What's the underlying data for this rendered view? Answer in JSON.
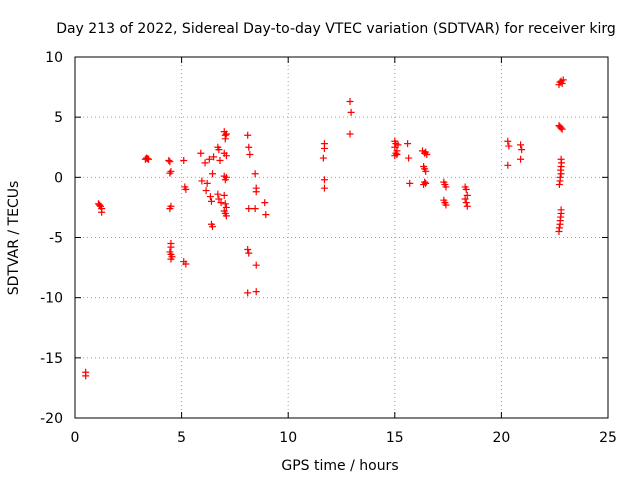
{
  "chart_data": {
    "type": "scatter",
    "title": "Day 213 of 2022, Sidereal Day-to-day VTEC variation (SDTVAR) for receiver kirg",
    "xlabel": "GPS time / hours",
    "ylabel": "SDTVAR / TECUs",
    "xlim": [
      0,
      25
    ],
    "ylim": [
      -20,
      10
    ],
    "xticks": [
      0,
      5,
      10,
      15,
      20,
      25
    ],
    "yticks": [
      -20,
      -15,
      -10,
      -5,
      0,
      5,
      10
    ],
    "grid": true,
    "marker": "+",
    "color": "#ff0000",
    "series": [
      {
        "name": "SDTVAR",
        "points": [
          [
            0.5,
            -16.2
          ],
          [
            0.5,
            -16.5
          ],
          [
            1.1,
            -2.2
          ],
          [
            1.15,
            -2.3
          ],
          [
            1.2,
            -2.4
          ],
          [
            1.25,
            -2.6
          ],
          [
            1.25,
            -2.9
          ],
          [
            3.3,
            1.5
          ],
          [
            3.35,
            1.6
          ],
          [
            3.4,
            1.55
          ],
          [
            3.45,
            1.5
          ],
          [
            4.4,
            1.4
          ],
          [
            4.45,
            1.3
          ],
          [
            4.5,
            0.5
          ],
          [
            4.45,
            0.35
          ],
          [
            4.5,
            -2.4
          ],
          [
            4.45,
            -2.6
          ],
          [
            4.5,
            -5.5
          ],
          [
            4.5,
            -5.8
          ],
          [
            4.45,
            -6.2
          ],
          [
            4.5,
            -6.4
          ],
          [
            4.55,
            -6.6
          ],
          [
            4.5,
            -6.8
          ],
          [
            5.1,
            1.4
          ],
          [
            5.15,
            -0.8
          ],
          [
            5.2,
            -1.0
          ],
          [
            5.1,
            -7.0
          ],
          [
            5.2,
            -7.2
          ],
          [
            5.9,
            2.0
          ],
          [
            5.95,
            -0.3
          ],
          [
            6.1,
            1.2
          ],
          [
            6.15,
            -1.1
          ],
          [
            6.3,
            1.5
          ],
          [
            6.2,
            -0.5
          ],
          [
            6.35,
            -1.6
          ],
          [
            6.4,
            -2.0
          ],
          [
            6.45,
            0.3
          ],
          [
            6.5,
            1.7
          ],
          [
            6.4,
            -3.9
          ],
          [
            6.45,
            -4.1
          ],
          [
            6.7,
            2.5
          ],
          [
            6.75,
            2.3
          ],
          [
            6.7,
            -1.4
          ],
          [
            6.75,
            -1.8
          ],
          [
            6.8,
            1.4
          ],
          [
            6.85,
            -2.1
          ],
          [
            7.0,
            3.8
          ],
          [
            7.05,
            3.5
          ],
          [
            7.1,
            3.6
          ],
          [
            7.05,
            3.2
          ],
          [
            7.0,
            2.0
          ],
          [
            7.1,
            1.8
          ],
          [
            7.0,
            0.1
          ],
          [
            7.05,
            -0.2
          ],
          [
            7.1,
            0.0
          ],
          [
            7.0,
            -1.5
          ],
          [
            7.05,
            -2.2
          ],
          [
            7.1,
            -2.5
          ],
          [
            7.0,
            -2.8
          ],
          [
            7.05,
            -3.0
          ],
          [
            7.1,
            -3.2
          ],
          [
            8.1,
            3.5
          ],
          [
            8.15,
            2.5
          ],
          [
            8.2,
            1.9
          ],
          [
            8.15,
            -2.6
          ],
          [
            8.1,
            -6.0
          ],
          [
            8.15,
            -6.3
          ],
          [
            8.1,
            -9.6
          ],
          [
            8.45,
            0.3
          ],
          [
            8.5,
            -0.9
          ],
          [
            8.5,
            -1.2
          ],
          [
            8.45,
            -2.6
          ],
          [
            8.5,
            -7.3
          ],
          [
            8.5,
            -9.5
          ],
          [
            8.9,
            -2.1
          ],
          [
            8.95,
            -3.1
          ],
          [
            11.7,
            2.8
          ],
          [
            11.7,
            2.4
          ],
          [
            11.65,
            1.6
          ],
          [
            11.7,
            -0.2
          ],
          [
            11.7,
            -0.9
          ],
          [
            12.9,
            6.3
          ],
          [
            12.95,
            5.4
          ],
          [
            12.9,
            3.6
          ],
          [
            15.0,
            3.0
          ],
          [
            15.05,
            2.8
          ],
          [
            15.0,
            2.5
          ],
          [
            15.1,
            2.2
          ],
          [
            15.05,
            2.0
          ],
          [
            15.0,
            1.8
          ],
          [
            15.1,
            1.9
          ],
          [
            15.15,
            2.7
          ],
          [
            15.6,
            2.8
          ],
          [
            15.65,
            1.6
          ],
          [
            15.7,
            -0.5
          ],
          [
            16.3,
            2.2
          ],
          [
            16.4,
            2.0
          ],
          [
            16.45,
            2.1
          ],
          [
            16.5,
            1.9
          ],
          [
            16.35,
            0.9
          ],
          [
            16.4,
            0.7
          ],
          [
            16.45,
            0.5
          ],
          [
            16.4,
            -0.4
          ],
          [
            16.45,
            -0.5
          ],
          [
            16.35,
            -0.6
          ],
          [
            17.3,
            -0.4
          ],
          [
            17.35,
            -0.6
          ],
          [
            17.4,
            -0.8
          ],
          [
            17.3,
            -1.9
          ],
          [
            17.35,
            -2.1
          ],
          [
            17.4,
            -2.3
          ],
          [
            18.3,
            -0.8
          ],
          [
            18.35,
            -1.0
          ],
          [
            18.4,
            -1.5
          ],
          [
            18.3,
            -1.8
          ],
          [
            18.35,
            -2.1
          ],
          [
            18.4,
            -2.4
          ],
          [
            20.3,
            3.0
          ],
          [
            20.35,
            2.6
          ],
          [
            20.3,
            1.0
          ],
          [
            20.9,
            2.7
          ],
          [
            20.95,
            2.3
          ],
          [
            20.9,
            1.5
          ],
          [
            22.7,
            7.7
          ],
          [
            22.75,
            7.9
          ],
          [
            22.8,
            8.0
          ],
          [
            22.85,
            7.8
          ],
          [
            22.9,
            8.1
          ],
          [
            22.7,
            4.3
          ],
          [
            22.75,
            4.2
          ],
          [
            22.8,
            4.1
          ],
          [
            22.85,
            4.0
          ],
          [
            22.8,
            1.5
          ],
          [
            22.82,
            1.2
          ],
          [
            22.8,
            0.9
          ],
          [
            22.78,
            0.6
          ],
          [
            22.8,
            0.3
          ],
          [
            22.76,
            0.0
          ],
          [
            22.75,
            -0.3
          ],
          [
            22.72,
            -0.6
          ],
          [
            22.8,
            -2.7
          ],
          [
            22.8,
            -3.0
          ],
          [
            22.78,
            -3.3
          ],
          [
            22.76,
            -3.6
          ],
          [
            22.75,
            -3.9
          ],
          [
            22.72,
            -4.2
          ],
          [
            22.7,
            -4.5
          ]
        ]
      }
    ]
  }
}
